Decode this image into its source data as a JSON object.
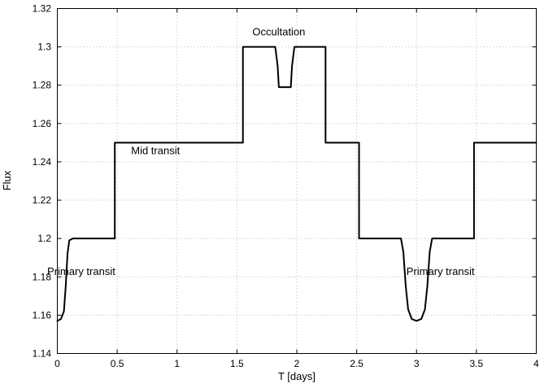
{
  "chart_data": {
    "type": "line",
    "xlabel": "T [days]",
    "ylabel": "Flux",
    "xlim": [
      0,
      4
    ],
    "ylim": [
      1.14,
      1.32
    ],
    "grid": true,
    "x_ticks": [
      0,
      0.5,
      1,
      1.5,
      2,
      2.5,
      3,
      3.5,
      4
    ],
    "x_tick_labels": [
      "0",
      "0.5",
      "1",
      "1.5",
      "2",
      "2.5",
      "3",
      "3.5",
      "4"
    ],
    "y_ticks": [
      1.14,
      1.16,
      1.18,
      1.2,
      1.22,
      1.24,
      1.26,
      1.28,
      1.3,
      1.32
    ],
    "y_tick_labels": [
      "1.14",
      "1.16",
      "1.18",
      "1.2",
      "1.22",
      "1.24",
      "1.26",
      "1.28",
      "1.3",
      "1.32"
    ],
    "series": [
      {
        "values": [
          [
            0,
            1.157
          ],
          [
            0.03,
            1.158
          ],
          [
            0.055,
            1.162
          ],
          [
            0.07,
            1.175
          ],
          [
            0.085,
            1.192
          ],
          [
            0.1,
            1.199
          ],
          [
            0.13,
            1.2
          ],
          [
            0.48,
            1.2
          ],
          [
            0.48,
            1.25
          ],
          [
            1.55,
            1.25
          ],
          [
            1.55,
            1.3
          ],
          [
            1.82,
            1.3
          ],
          [
            1.84,
            1.29
          ],
          [
            1.85,
            1.279
          ],
          [
            1.95,
            1.279
          ],
          [
            1.96,
            1.29
          ],
          [
            1.98,
            1.3
          ],
          [
            2.24,
            1.3
          ],
          [
            2.24,
            1.25
          ],
          [
            2.52,
            1.25
          ],
          [
            2.52,
            1.2
          ],
          [
            2.87,
            1.2
          ],
          [
            2.89,
            1.193
          ],
          [
            2.91,
            1.175
          ],
          [
            2.93,
            1.163
          ],
          [
            2.96,
            1.158
          ],
          [
            3.0,
            1.157
          ],
          [
            3.04,
            1.158
          ],
          [
            3.07,
            1.163
          ],
          [
            3.09,
            1.175
          ],
          [
            3.11,
            1.193
          ],
          [
            3.13,
            1.2
          ],
          [
            3.48,
            1.2
          ],
          [
            3.48,
            1.25
          ],
          [
            4,
            1.25
          ]
        ]
      }
    ],
    "annotations": [
      {
        "text": "Occultation",
        "x": 1.85,
        "y": 1.306
      },
      {
        "text": "Mid transit",
        "x": 0.82,
        "y": 1.244
      },
      {
        "text": "Primary transit",
        "x": 0.2,
        "y": 1.181
      },
      {
        "text": "Primary transit",
        "x": 3.2,
        "y": 1.181
      }
    ]
  }
}
